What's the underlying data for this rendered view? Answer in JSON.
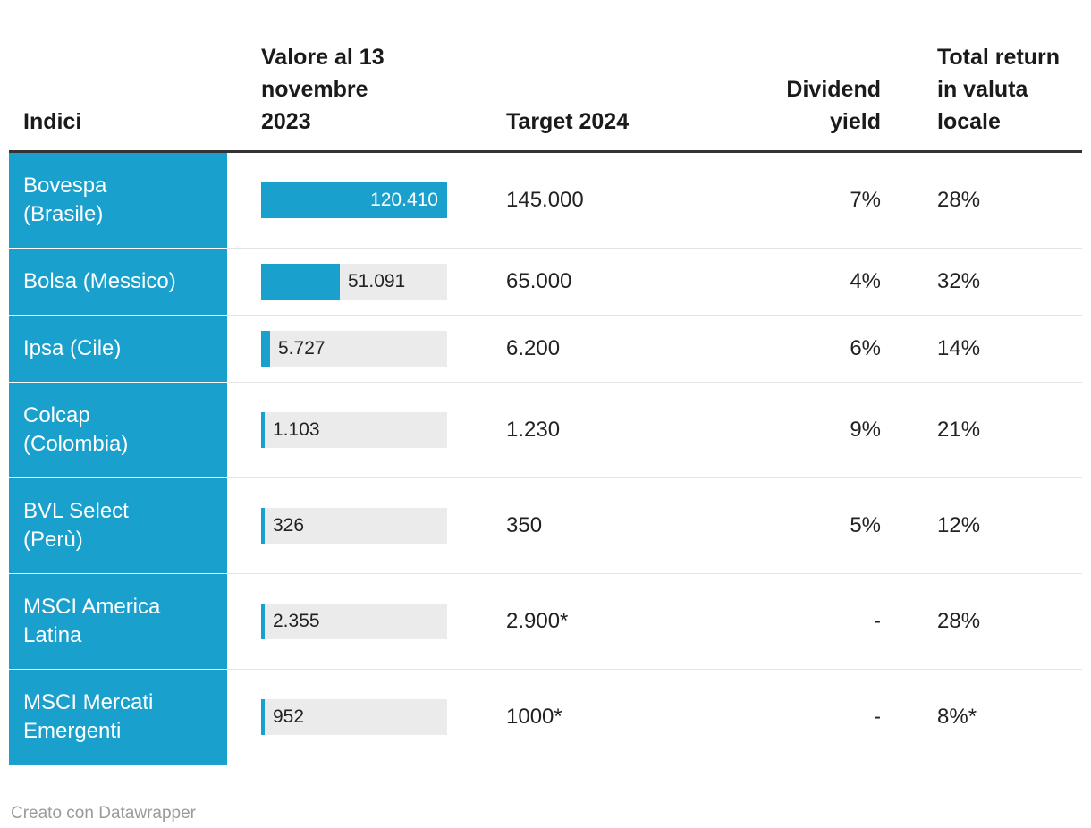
{
  "header": {
    "indici": "Indici",
    "valore": "Valore al 13\nnovembre\n2023",
    "target": "Target 2024",
    "dividend_yield": "Dividend\nyield",
    "total_return": "Total return\nin valuta\nlocale"
  },
  "chart_data": {
    "type": "table",
    "columns": [
      "Indici",
      "Valore al 13 novembre 2023",
      "Target 2024",
      "Dividend yield",
      "Total return in valuta locale"
    ],
    "bar_column": "Valore al 13 novembre 2023",
    "bar_max": 120410,
    "rows": [
      {
        "index": "Bovespa\n(Brasile)",
        "value": 120410,
        "value_label": "120.410",
        "target": "145.000",
        "dividend_yield": "7%",
        "total_return": "28%"
      },
      {
        "index": "Bolsa (Messico)",
        "value": 51091,
        "value_label": "51.091",
        "target": "65.000",
        "dividend_yield": "4%",
        "total_return": "32%"
      },
      {
        "index": "Ipsa (Cile)",
        "value": 5727,
        "value_label": "5.727",
        "target": "6.200",
        "dividend_yield": "6%",
        "total_return": "14%"
      },
      {
        "index": "Colcap\n(Colombia)",
        "value": 1103,
        "value_label": "1.103",
        "target": "1.230",
        "dividend_yield": "9%",
        "total_return": "21%"
      },
      {
        "index": "BVL Select\n(Perù)",
        "value": 326,
        "value_label": "326",
        "target": "350",
        "dividend_yield": "5%",
        "total_return": "12%"
      },
      {
        "index": "MSCI America\nLatina",
        "value": 2355,
        "value_label": "2.355",
        "target": "2.900*",
        "dividend_yield": "-",
        "total_return": "28%"
      },
      {
        "index": "MSCI Mercati\nEmergenti",
        "value": 952,
        "value_label": "952",
        "target": "1000*",
        "dividend_yield": "-",
        "total_return": "8%*"
      }
    ]
  },
  "footer": {
    "credit": "Creato con Datawrapper"
  },
  "colors": {
    "bar_fill": "#1aa0cd",
    "bar_track": "#ebebeb",
    "index_bg": "#1aa0cd",
    "header_rule": "#333333",
    "separator": "#e4e4e4",
    "credit_text": "#9a9a9a"
  }
}
